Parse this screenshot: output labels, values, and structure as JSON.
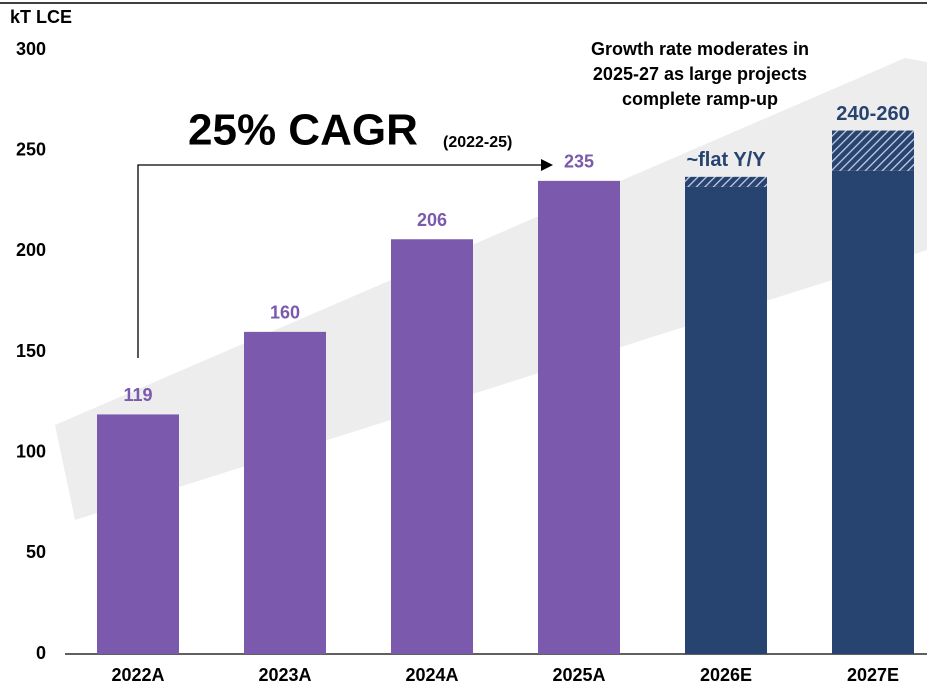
{
  "chart_data": {
    "type": "bar",
    "y_axis_title": "kT LCE",
    "categories": [
      "2022A",
      "2023A",
      "2024A",
      "2025A",
      "2026E",
      "2027E"
    ],
    "values": [
      119,
      160,
      206,
      235,
      null,
      null
    ],
    "color": "#7b59ad",
    "ranges": {
      "low": [
        null,
        null,
        null,
        null,
        232,
        240
      ],
      "high": [
        null,
        null,
        null,
        null,
        237,
        260
      ],
      "labels": [
        null,
        null,
        null,
        null,
        "~flat Y/Y",
        "240-260"
      ],
      "color": "#27436f"
    },
    "ylim": [
      0,
      300
    ],
    "yticks": [
      0,
      50,
      100,
      150,
      200,
      250,
      300
    ],
    "grid": false,
    "annotations": {
      "cagr": "25% CAGR",
      "cagr_period": "(2022-25)",
      "note": [
        "Growth rate moderates in",
        "2025-27 as large projects",
        "complete ramp-up"
      ]
    }
  }
}
